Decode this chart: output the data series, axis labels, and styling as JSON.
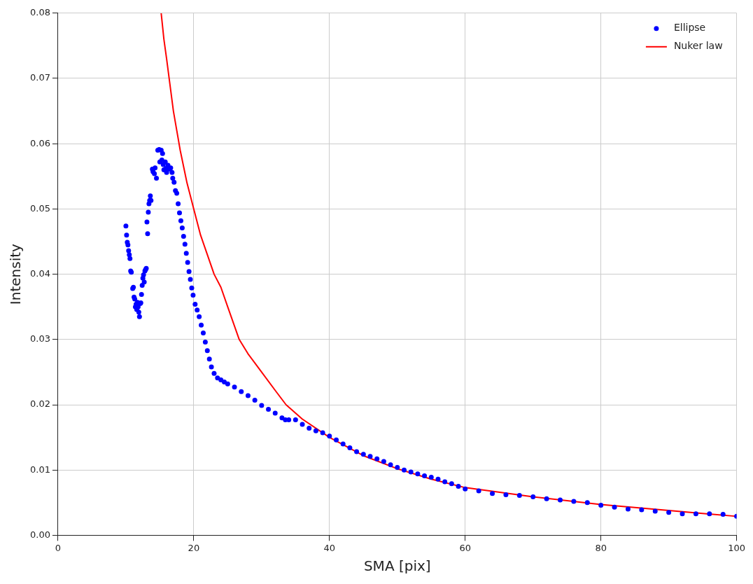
{
  "chart_data": {
    "type": "scatter",
    "xlabel": "SMA [pix]",
    "ylabel": "Intensity",
    "xlim": [
      0,
      100
    ],
    "xticks": [
      0,
      20,
      40,
      60,
      80,
      100
    ],
    "ylim": [
      0,
      0.08
    ],
    "yticks": [
      {
        "value": 0,
        "label": "0.00"
      },
      {
        "value": 0.01,
        "label": "0.01"
      },
      {
        "value": 0.02,
        "label": "0.02"
      },
      {
        "value": 0.03,
        "label": "0.03"
      },
      {
        "value": 0.04,
        "label": "0.04"
      },
      {
        "value": 0.05,
        "label": "0.05"
      },
      {
        "value": 0.06,
        "label": "0.06"
      },
      {
        "value": 0.07,
        "label": "0.07"
      },
      {
        "value": 0.08,
        "label": "0.08"
      }
    ],
    "grid": true,
    "legend": "top right",
    "series": [
      {
        "name": "Ellipse",
        "marker": "circle",
        "color": "#0000ff",
        "x": [
          10.0,
          10.1,
          10.2,
          10.3,
          10.4,
          10.5,
          10.6,
          10.7,
          10.8,
          11.0,
          11.1,
          11.2,
          11.3,
          11.4,
          11.5,
          11.6,
          11.7,
          11.8,
          11.9,
          12.0,
          12.1,
          12.2,
          12.3,
          12.4,
          12.5,
          12.6,
          12.7,
          12.8,
          12.9,
          13.0,
          13.1,
          13.2,
          13.3,
          13.4,
          13.5,
          13.6,
          13.7,
          13.9,
          14.0,
          14.2,
          14.3,
          14.5,
          14.7,
          14.9,
          15.0,
          15.2,
          15.3,
          15.4,
          15.5,
          15.6,
          15.8,
          15.9,
          16.0,
          16.2,
          16.4,
          16.6,
          16.8,
          16.9,
          17.1,
          17.3,
          17.5,
          17.7,
          17.9,
          18.1,
          18.3,
          18.5,
          18.7,
          18.9,
          19.1,
          19.3,
          19.5,
          19.7,
          19.9,
          20.2,
          20.5,
          20.8,
          21.1,
          21.4,
          21.7,
          22.0,
          22.3,
          22.6,
          23.0,
          23.5,
          24.0,
          24.5,
          25,
          26,
          27,
          28,
          29,
          30,
          31,
          32,
          33,
          33.5,
          34,
          35,
          36,
          37,
          38,
          39,
          40,
          41,
          42,
          43,
          44,
          45,
          46,
          47,
          48,
          49,
          50,
          51,
          52,
          53,
          54,
          55,
          56,
          57,
          58,
          59,
          60,
          62,
          64,
          66,
          68,
          70,
          72,
          74,
          76,
          78,
          80,
          82,
          84,
          86,
          88,
          90,
          92,
          94,
          96,
          98,
          100
        ],
        "values": [
          0.0474,
          0.046,
          0.0449,
          0.0445,
          0.0436,
          0.043,
          0.0424,
          0.0405,
          0.0403,
          0.0378,
          0.038,
          0.0365,
          0.0362,
          0.035,
          0.0354,
          0.0346,
          0.0357,
          0.035,
          0.0342,
          0.0335,
          0.0355,
          0.0356,
          0.0369,
          0.0383,
          0.0394,
          0.0399,
          0.0388,
          0.0405,
          0.0407,
          0.0409,
          0.048,
          0.0462,
          0.0495,
          0.0508,
          0.0513,
          0.052,
          0.0513,
          0.0561,
          0.0557,
          0.0554,
          0.0563,
          0.0547,
          0.059,
          0.0591,
          0.0572,
          0.059,
          0.0575,
          0.0585,
          0.0568,
          0.056,
          0.0572,
          0.0562,
          0.0556,
          0.0567,
          0.0561,
          0.0563,
          0.0556,
          0.0547,
          0.0541,
          0.0528,
          0.0524,
          0.0508,
          0.0494,
          0.0482,
          0.0471,
          0.0458,
          0.0446,
          0.0432,
          0.0418,
          0.0404,
          0.0392,
          0.0379,
          0.0368,
          0.0354,
          0.0345,
          0.0335,
          0.0322,
          0.031,
          0.0296,
          0.0283,
          0.027,
          0.0258,
          0.0248,
          0.0241,
          0.0238,
          0.0235,
          0.0232,
          0.0227,
          0.022,
          0.0214,
          0.0207,
          0.0199,
          0.0193,
          0.0187,
          0.018,
          0.0177,
          0.0177,
          0.0177,
          0.017,
          0.0164,
          0.016,
          0.0157,
          0.0152,
          0.0146,
          0.014,
          0.0134,
          0.0128,
          0.0124,
          0.0121,
          0.0117,
          0.0113,
          0.0108,
          0.0104,
          0.01,
          0.0097,
          0.0094,
          0.0091,
          0.0089,
          0.0086,
          0.0082,
          0.0079,
          0.0075,
          0.0071,
          0.0068,
          0.0064,
          0.0062,
          0.0061,
          0.0059,
          0.0056,
          0.0054,
          0.0052,
          0.005,
          0.0046,
          0.0043,
          0.004,
          0.0039,
          0.0037,
          0.0035,
          0.0033,
          0.0033,
          0.0033,
          0.0032,
          0.0029
        ]
      },
      {
        "name": "Nuker law",
        "type": "line",
        "marker": "none",
        "color": "#ff0000",
        "x": [
          15.2,
          15.6,
          16,
          16.5,
          17,
          17.5,
          18,
          19,
          20,
          21,
          22,
          23,
          24,
          25,
          26.7,
          28,
          30,
          32,
          33.6,
          36,
          40,
          45,
          50,
          55,
          60,
          70,
          80,
          90,
          100
        ],
        "values": [
          0.08,
          0.076,
          0.073,
          0.069,
          0.065,
          0.062,
          0.059,
          0.054,
          0.05,
          0.046,
          0.043,
          0.04,
          0.038,
          0.035,
          0.03,
          0.0278,
          0.025,
          0.0222,
          0.02,
          0.0178,
          0.015,
          0.0122,
          0.0102,
          0.0086,
          0.0073,
          0.0059,
          0.0047,
          0.0038,
          0.0029
        ]
      }
    ]
  }
}
